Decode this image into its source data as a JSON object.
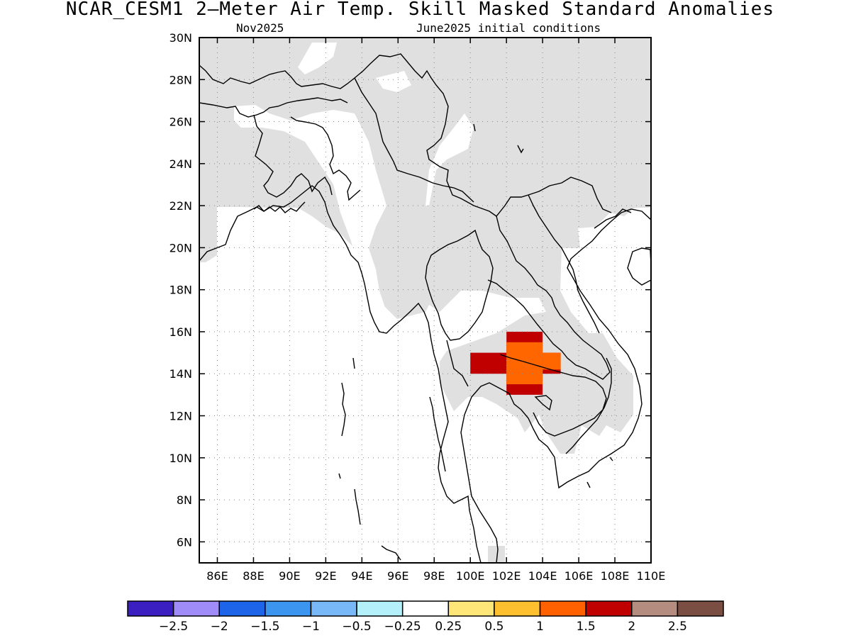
{
  "title": "NCAR_CESM1 2—Meter Air Temp. Skill Masked Standard Anomalies",
  "subtitle_left": "Nov2025",
  "subtitle_right": "June2025 initial conditions",
  "map": {
    "lon_range": [
      85,
      110
    ],
    "lat_range": [
      5,
      30
    ],
    "lon_ticks": [
      {
        "v": 86,
        "label": "86E"
      },
      {
        "v": 88,
        "label": "88E"
      },
      {
        "v": 90,
        "label": "90E"
      },
      {
        "v": 92,
        "label": "92E"
      },
      {
        "v": 94,
        "label": "94E"
      },
      {
        "v": 96,
        "label": "96E"
      },
      {
        "v": 98,
        "label": "98E"
      },
      {
        "v": 100,
        "label": "100E"
      },
      {
        "v": 102,
        "label": "102E"
      },
      {
        "v": 104,
        "label": "104E"
      },
      {
        "v": 106,
        "label": "106E"
      },
      {
        "v": 108,
        "label": "108E"
      },
      {
        "v": 110,
        "label": "110E"
      }
    ],
    "lat_ticks": [
      {
        "v": 6,
        "label": "6N"
      },
      {
        "v": 8,
        "label": "8N"
      },
      {
        "v": 10,
        "label": "10N"
      },
      {
        "v": 12,
        "label": "12N"
      },
      {
        "v": 14,
        "label": "14N"
      },
      {
        "v": 16,
        "label": "16N"
      },
      {
        "v": 18,
        "label": "18N"
      },
      {
        "v": 20,
        "label": "20N"
      },
      {
        "v": 22,
        "label": "22N"
      },
      {
        "v": 24,
        "label": "24N"
      },
      {
        "v": 26,
        "label": "26N"
      },
      {
        "v": 28,
        "label": "28N"
      },
      {
        "v": 30,
        "label": "30N"
      }
    ],
    "mask_color": "#e0e0e0",
    "anomaly_cells": [
      {
        "lon": 100,
        "lat": 14,
        "dlon": 2,
        "dlat": 1,
        "color": "#c00000"
      },
      {
        "lon": 102,
        "lat": 13,
        "dlon": 2,
        "dlat": 3,
        "color": "#c00000"
      },
      {
        "lon": 104,
        "lat": 14,
        "dlon": 1,
        "dlat": 1,
        "color": "#c00000"
      },
      {
        "lon": 102,
        "lat": 13.5,
        "dlon": 2,
        "dlat": 2,
        "color": "#ff6600"
      },
      {
        "lon": 104,
        "lat": 14.2,
        "dlon": 1,
        "dlat": 0.8,
        "color": "#ff6600"
      }
    ]
  },
  "colorbar": {
    "colors": [
      "#3c1fc0",
      "#a08cf8",
      "#1e64e8",
      "#3c96f0",
      "#78b8f8",
      "#b4f0fa",
      "#ffffff",
      "#ffe678",
      "#ffc030",
      "#ff6000",
      "#c00000",
      "#b48c80",
      "#7a4e42"
    ],
    "labels": [
      "−2.5",
      "−2",
      "−1.5",
      "−1",
      "−0.5",
      "−0.25",
      "0.25",
      "0.5",
      "1",
      "1.5",
      "2",
      "2.5"
    ]
  }
}
